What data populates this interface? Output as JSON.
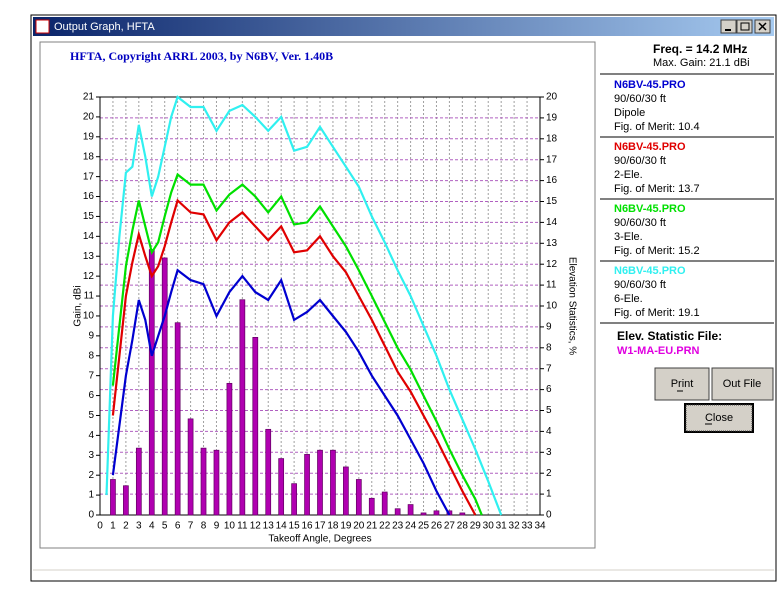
{
  "window": {
    "title": "Output Graph, HFTA"
  },
  "chart_data": {
    "type": "line",
    "title": "HFTA, Copyright ARRL 2003, by N6BV, Ver. 1.40B",
    "x_label": "Takeoff Angle, Degrees",
    "y_label": "Gain, dBi",
    "y2_label": "Elevation Statistics, %",
    "xlim": [
      0,
      34
    ],
    "xticks": [
      0,
      1,
      2,
      3,
      4,
      5,
      6,
      7,
      8,
      9,
      10,
      11,
      12,
      13,
      14,
      15,
      16,
      17,
      18,
      19,
      20,
      21,
      22,
      23,
      24,
      25,
      26,
      27,
      28,
      29,
      30,
      31,
      32,
      33,
      34
    ],
    "ylim": [
      0,
      21
    ],
    "yticks": [
      0,
      1,
      2,
      3,
      4,
      5,
      6,
      7,
      8,
      9,
      10,
      11,
      12,
      13,
      14,
      15,
      16,
      17,
      18,
      19,
      20,
      21
    ],
    "y2lim": [
      0,
      20
    ],
    "y2ticks": [
      0,
      1,
      2,
      3,
      4,
      5,
      6,
      7,
      8,
      9,
      10,
      11,
      12,
      13,
      14,
      15,
      16,
      17,
      18,
      19,
      20
    ],
    "grid": true,
    "series": [
      {
        "name": "Dipole",
        "file": "N6BV-45.PRO",
        "height": "90/60/30 ft",
        "merit": "Fig. of Merit:  10.4",
        "color": "#0000d0",
        "x": [
          1,
          2,
          2.5,
          3,
          3.5,
          4,
          4.5,
          5,
          5.5,
          6,
          7,
          8,
          9,
          10,
          11,
          12,
          13,
          14,
          15,
          16,
          17,
          18,
          19,
          20,
          21,
          22,
          23,
          24,
          25,
          26,
          27
        ],
        "values": [
          2,
          7,
          8.8,
          10.8,
          9.8,
          8,
          9,
          10,
          11.2,
          12.3,
          11.8,
          11.6,
          10,
          11.2,
          12,
          11.2,
          10.8,
          11.8,
          9.8,
          10.2,
          10.8,
          10,
          9.2,
          8.2,
          7,
          6,
          5,
          3.8,
          2.6,
          1.2,
          0
        ]
      },
      {
        "name": "2-Ele.",
        "file": "N6BV-45.PRO",
        "height": "90/60/30 ft",
        "merit": "Fig. of Merit:  13.7",
        "color": "#e00000",
        "x": [
          1,
          2,
          2.5,
          3,
          3.5,
          4,
          4.5,
          5,
          5.5,
          6,
          7,
          8,
          9,
          10,
          11,
          12,
          13,
          14,
          15,
          16,
          17,
          18,
          19,
          20,
          21,
          22,
          23,
          24,
          25,
          26,
          27,
          28,
          29
        ],
        "values": [
          5,
          11,
          12.7,
          14.1,
          13,
          12,
          12.5,
          13.5,
          14.7,
          15.8,
          15.2,
          15.1,
          13.8,
          14.7,
          15.2,
          14.5,
          13.8,
          14.5,
          13.2,
          13.3,
          14,
          13,
          12.2,
          11,
          9.8,
          8.5,
          7.2,
          6.2,
          5,
          3.8,
          2.5,
          1.2,
          0
        ]
      },
      {
        "name": "3-Ele.",
        "file": "N6BV-45.PRO",
        "height": "90/60/30 ft",
        "merit": "Fig. of Merit:  15.2",
        "color": "#00e000",
        "x": [
          1,
          2,
          2.5,
          3,
          3.5,
          4,
          4.5,
          5,
          5.5,
          6,
          7,
          8,
          9,
          10,
          11,
          12,
          13,
          14,
          15,
          16,
          17,
          18,
          19,
          20,
          21,
          22,
          23,
          24,
          25,
          26,
          27,
          28,
          29,
          29.5
        ],
        "values": [
          6.5,
          12.5,
          14.3,
          15.8,
          14.5,
          13.2,
          13.7,
          15,
          16.2,
          17.1,
          16.6,
          16.6,
          15.3,
          16.1,
          16.6,
          16,
          15.2,
          16,
          14.6,
          14.7,
          15.5,
          14.5,
          13.5,
          12.3,
          11,
          9.7,
          8.4,
          7.3,
          6,
          4.7,
          3.3,
          2,
          0.8,
          0
        ]
      },
      {
        "name": "6-Ele.",
        "file": "N6BV-45.PRO",
        "height": "90/60/30 ft",
        "merit": "Fig. of Merit:  19.1",
        "color": "#30f0f0",
        "x": [
          0.5,
          1,
          1.5,
          2,
          2.5,
          3,
          3.5,
          4,
          4.5,
          5,
          5.5,
          6,
          7,
          8,
          9,
          10,
          11,
          12,
          13,
          14,
          15,
          16,
          17,
          18,
          19,
          20,
          21,
          22,
          23,
          24,
          25,
          26,
          27,
          28,
          29,
          30,
          31
        ],
        "values": [
          1,
          10,
          14,
          17.2,
          17.5,
          19.6,
          18,
          16,
          17,
          18.5,
          20,
          21,
          20.5,
          20.5,
          19.3,
          20.3,
          20.6,
          20,
          19.3,
          20,
          18.3,
          18.5,
          19.5,
          18.5,
          17.5,
          16.5,
          15,
          13.7,
          12.3,
          11,
          9.5,
          8,
          6.3,
          4.8,
          3.3,
          1.7,
          0
        ]
      },
      {
        "type": "bar",
        "axis": "y2",
        "color": "#b000b0",
        "x": [
          1,
          2,
          3,
          4,
          5,
          6,
          7,
          8,
          9,
          10,
          11,
          12,
          13,
          14,
          15,
          16,
          17,
          18,
          19,
          20,
          21,
          22,
          23,
          24,
          25,
          26,
          27,
          28
        ],
        "values": [
          1.7,
          1.4,
          3.2,
          12.7,
          12.3,
          9.2,
          4.6,
          3.2,
          3.1,
          6.3,
          10.3,
          8.5,
          4.1,
          2.7,
          1.5,
          2.9,
          3.1,
          3.1,
          2.3,
          1.7,
          0.8,
          1.1,
          0.3,
          0.5,
          0.1,
          0.2,
          0.2,
          0.1
        ]
      }
    ]
  },
  "panel": {
    "freq": "Freq. = 14.2 MHz",
    "max_gain": "Max. Gain:  21.1 dBi",
    "stat_title": "Elev. Statistic File:",
    "stat_file": "W1-MA-EU.PRN",
    "stat_color": "#e000e0",
    "buttons": [
      "Print",
      "Out File",
      "Close"
    ]
  }
}
